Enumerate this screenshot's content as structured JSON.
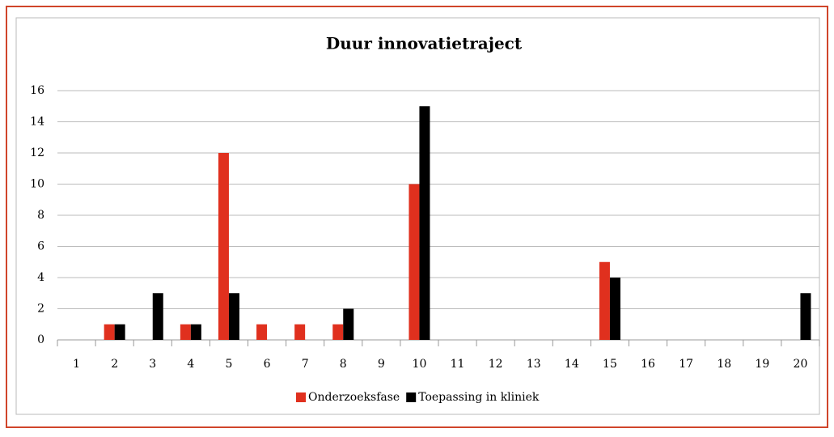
{
  "chart_data": {
    "type": "bar",
    "title": "Duur innovatietraject",
    "categories": [
      "1",
      "2",
      "3",
      "4",
      "5",
      "6",
      "7",
      "8",
      "9",
      "10",
      "11",
      "12",
      "13",
      "14",
      "15",
      "16",
      "17",
      "18",
      "19",
      "20"
    ],
    "series": [
      {
        "name": "Onderzoeksfase",
        "color": "#e0301e",
        "values": [
          0,
          1,
          0,
          1,
          12,
          1,
          1,
          1,
          0,
          10,
          0,
          0,
          0,
          0,
          5,
          0,
          0,
          0,
          0,
          0
        ]
      },
      {
        "name": "Toepassing in kliniek",
        "color": "#000000",
        "values": [
          0,
          1,
          3,
          1,
          3,
          0,
          0,
          2,
          0,
          15,
          0,
          0,
          0,
          0,
          4,
          0,
          0,
          0,
          0,
          3
        ]
      }
    ],
    "ylim": [
      0,
      16
    ],
    "yticks": [
      0,
      2,
      4,
      6,
      8,
      10,
      12,
      14,
      16
    ],
    "grid": true,
    "legend": "bottom"
  }
}
